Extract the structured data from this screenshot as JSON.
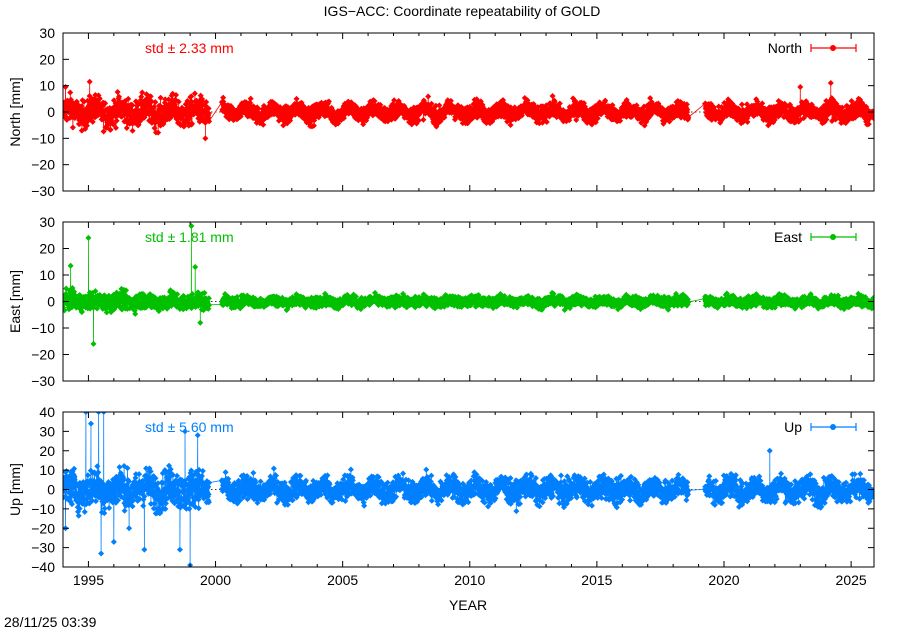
{
  "title": "IGS−ACC: Coordinate repeatability of GOLD",
  "timestamp": "28/11/25 03:39",
  "chart_data": [
    {
      "type": "scatter",
      "xlabel": "",
      "ylabel": "North [mm]",
      "xlim": [
        1994.0,
        2025.9
      ],
      "ylim": [
        -30,
        30
      ],
      "yticks": [
        30,
        20,
        10,
        0,
        -10,
        -20,
        -30
      ],
      "ytick_labels": [
        "30",
        "20",
        "10",
        "0",
        "−10",
        "−20",
        "−30"
      ],
      "xticks": [
        1995,
        2000,
        2005,
        2010,
        2015,
        2020,
        2025
      ],
      "xtick_labels": [],
      "std_label": "std ± 2.33 mm",
      "series": [
        {
          "name": "North",
          "color": "#ff0000",
          "std": 2.33,
          "amp": 3.0,
          "annual_amp": 1.5,
          "gaps": [
            [
              1999.75,
              2000.25
            ],
            [
              2018.6,
              2019.25
            ]
          ],
          "outliers": [
            [
              1995.05,
              11.5
            ],
            [
              2024.2,
              11.0
            ],
            [
              2023.0,
              9.5
            ],
            [
              1999.6,
              -10.0
            ],
            [
              1994.1,
              9.5
            ]
          ]
        }
      ],
      "legend": "top-right",
      "grid": false
    },
    {
      "type": "scatter",
      "xlabel": "",
      "ylabel": "East [mm]",
      "xlim": [
        1994.0,
        2025.9
      ],
      "ylim": [
        -30,
        30
      ],
      "yticks": [
        30,
        20,
        10,
        0,
        -10,
        -20,
        -30
      ],
      "ytick_labels": [
        "30",
        "20",
        "10",
        "0",
        "−10",
        "−20",
        "−30"
      ],
      "xticks": [
        1995,
        2000,
        2005,
        2010,
        2015,
        2020,
        2025
      ],
      "xtick_labels": [],
      "std_label": "std ± 1.81 mm",
      "series": [
        {
          "name": "East",
          "color": "#00c000",
          "std": 1.81,
          "amp": 1.8,
          "annual_amp": 0.6,
          "gaps": [
            [
              1999.75,
              2000.25
            ],
            [
              2018.6,
              2019.25
            ]
          ],
          "outliers": [
            [
              1995.0,
              24.0
            ],
            [
              1999.05,
              28.5
            ],
            [
              1995.2,
              -16.0
            ],
            [
              1999.2,
              13.0
            ],
            [
              1994.3,
              13.5
            ],
            [
              1999.4,
              -8.0
            ]
          ]
        }
      ],
      "legend": "top-right",
      "grid": false
    },
    {
      "type": "scatter",
      "xlabel": "YEAR",
      "ylabel": "Up [mm]",
      "xlim": [
        1994.0,
        2025.9
      ],
      "ylim": [
        -40,
        40
      ],
      "yticks": [
        40,
        30,
        20,
        10,
        0,
        -10,
        -20,
        -30,
        -40
      ],
      "ytick_labels": [
        "40",
        "30",
        "20",
        "10",
        "0",
        "−10",
        "−20",
        "−30",
        "−40"
      ],
      "xticks": [
        1995,
        2000,
        2005,
        2010,
        2015,
        2020,
        2025
      ],
      "xtick_labels": [
        "1995",
        "2000",
        "2005",
        "2010",
        "2015",
        "2020",
        "2025"
      ],
      "std_label": "std ± 5.60 mm",
      "series": [
        {
          "name": "Up",
          "color": "#0080ff",
          "std": 5.6,
          "amp": 5.5,
          "annual_amp": 2.5,
          "gaps": [
            [
              1999.75,
              2000.25
            ],
            [
              2018.6,
              2019.25
            ]
          ],
          "outliers": [
            [
              1994.9,
              40
            ],
            [
              1995.4,
              40
            ],
            [
              1995.6,
              40
            ],
            [
              1995.1,
              34
            ],
            [
              1995.5,
              -33
            ],
            [
              1996.0,
              -27
            ],
            [
              1997.2,
              -31
            ],
            [
              1998.6,
              -31
            ],
            [
              1999.0,
              -39
            ],
            [
              1998.8,
              30
            ],
            [
              1999.3,
              28
            ],
            [
              2021.8,
              20
            ],
            [
              1994.1,
              -20
            ],
            [
              1996.6,
              -20
            ]
          ]
        }
      ],
      "legend": "top-right",
      "grid": false
    }
  ]
}
